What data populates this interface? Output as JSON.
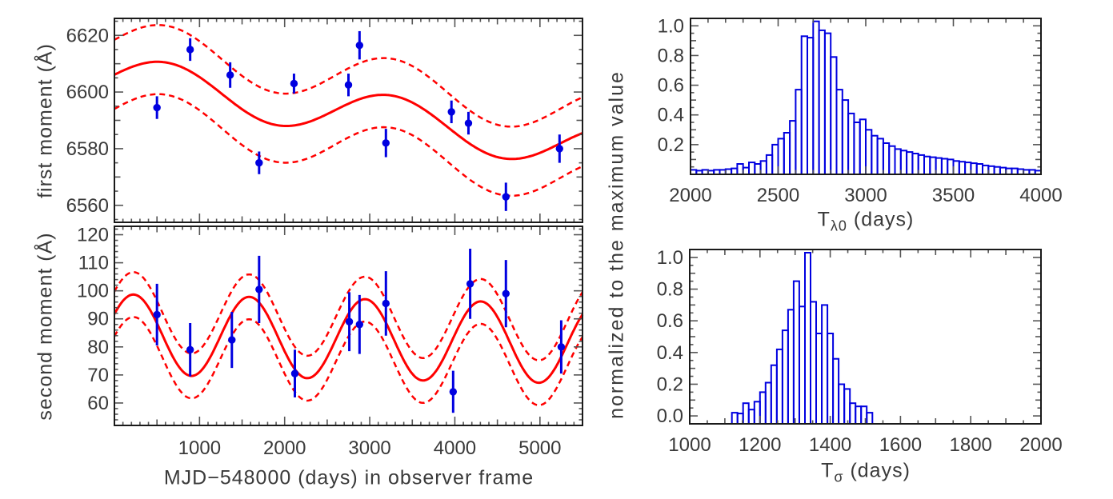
{
  "colors": {
    "data_blue": "#0000e0",
    "model_red": "#ff0000",
    "frame_black": "#1a1a1a",
    "tick_gray": "#555555",
    "label_gray": "#3a3a3a",
    "background": "#ffffff"
  },
  "chart_data": [
    {
      "id": "first-moment-panel",
      "type": "scatter",
      "ylabel": "first moment (Å)",
      "xlabel": "",
      "xlim": [
        0,
        5500
      ],
      "ylim": [
        6554,
        6626
      ],
      "x_tick_labels": [],
      "y_tick_labels": [
        "6560",
        "6580",
        "6600",
        "6620"
      ],
      "points": {
        "x": [
          500,
          890,
          1360,
          1700,
          2110,
          2750,
          2880,
          3190,
          3960,
          4160,
          4600,
          5230
        ],
        "y": [
          6594.5,
          6615,
          6606,
          6575,
          6603,
          6602.5,
          6616.5,
          6582,
          6593,
          6589,
          6563,
          6580
        ],
        "yerr": [
          4,
          4,
          4.5,
          4,
          3.5,
          4,
          5,
          5,
          4,
          4,
          5,
          5
        ]
      },
      "model_curve": {
        "description": "solid red sinusoid with dashed envelope",
        "base": 6604.9,
        "slope_per_day": -0.0044,
        "amplitude": 8.2,
        "period_days": 2650,
        "x0": -62.5,
        "envelope_offset": 12.2,
        "envelope_amplitude": 9.0
      }
    },
    {
      "id": "second-moment-panel",
      "type": "scatter",
      "ylabel": "second moment (Å)",
      "xlabel": "MJD−548000 (days) in observer frame",
      "xlim": [
        0,
        5500
      ],
      "ylim": [
        52,
        123
      ],
      "x_tick_labels": [
        "1000",
        "2000",
        "3000",
        "4000",
        "5000"
      ],
      "y_tick_labels": [
        "60",
        "70",
        "80",
        "90",
        "100",
        "110",
        "120"
      ],
      "points": {
        "x": [
          500,
          890,
          1380,
          1700,
          2120,
          2760,
          2880,
          3190,
          3980,
          4180,
          4600,
          5250
        ],
        "y": [
          91.5,
          79,
          82.5,
          100.5,
          70.5,
          89,
          88,
          95.5,
          64,
          102.5,
          99,
          80
        ],
        "yerr": [
          11,
          9.5,
          10,
          12,
          8.5,
          10.5,
          10.5,
          11.5,
          7.5,
          12.5,
          12,
          9.5
        ]
      },
      "model_curve": {
        "description": "solid red sinusoid with dashed envelope",
        "base": 84.5,
        "slope_per_day": -0.0006,
        "amplitude": 14.3,
        "period_days": 1360,
        "x0": -115,
        "envelope_offset": 8.0,
        "envelope_amplitude": 14.3
      }
    },
    {
      "id": "t-lambda0-histogram",
      "type": "bar",
      "ylabel": "normalized to the maximum value",
      "xlabel_parts": {
        "prefix": "T",
        "sub": "λ0",
        "suffix": " (days)"
      },
      "xlim": [
        2000,
        4000
      ],
      "ylim": [
        0,
        1.05
      ],
      "x_tick_labels": [
        "2000",
        "2500",
        "3000",
        "3500",
        "4000"
      ],
      "y_tick_labels": [
        "0.2",
        "0.4",
        "0.6",
        "0.8",
        "1.0"
      ],
      "bin_start": 2000,
      "bin_width": 33.333,
      "values": [
        0.03,
        0.025,
        0.03,
        0.025,
        0.03,
        0.03,
        0.035,
        0.04,
        0.07,
        0.045,
        0.08,
        0.07,
        0.09,
        0.13,
        0.2,
        0.24,
        0.28,
        0.36,
        0.57,
        0.93,
        0.92,
        1.03,
        0.97,
        0.95,
        0.79,
        0.57,
        0.5,
        0.41,
        0.35,
        0.37,
        0.3,
        0.26,
        0.24,
        0.21,
        0.19,
        0.17,
        0.16,
        0.15,
        0.14,
        0.13,
        0.12,
        0.115,
        0.11,
        0.105,
        0.1,
        0.09,
        0.085,
        0.08,
        0.075,
        0.07,
        0.06,
        0.055,
        0.05,
        0.045,
        0.04,
        0.04,
        0.035,
        0.03,
        0.03,
        0.025
      ]
    },
    {
      "id": "t-sigma-histogram",
      "type": "bar",
      "ylabel": "normalized to the maximum value",
      "xlabel_parts": {
        "prefix": "T",
        "sub": "σ",
        "suffix": " (days)"
      },
      "xlim": [
        1000,
        2000
      ],
      "ylim": [
        -0.05,
        1.05
      ],
      "x_tick_labels": [
        "1000",
        "1200",
        "1400",
        "1600",
        "1800",
        "2000"
      ],
      "y_tick_labels": [
        "0.0",
        "0.2",
        "0.4",
        "0.6",
        "0.8",
        "1.0"
      ],
      "bin_start": 1120,
      "bin_width": 16,
      "values": [
        0.02,
        0.015,
        0.08,
        0.04,
        0.09,
        0.15,
        0.21,
        0.32,
        0.42,
        0.54,
        0.67,
        0.85,
        0.69,
        1.03,
        0.72,
        0.52,
        0.7,
        0.52,
        0.36,
        0.2,
        0.17,
        0.08,
        0.06,
        0.06,
        0.02
      ]
    }
  ]
}
